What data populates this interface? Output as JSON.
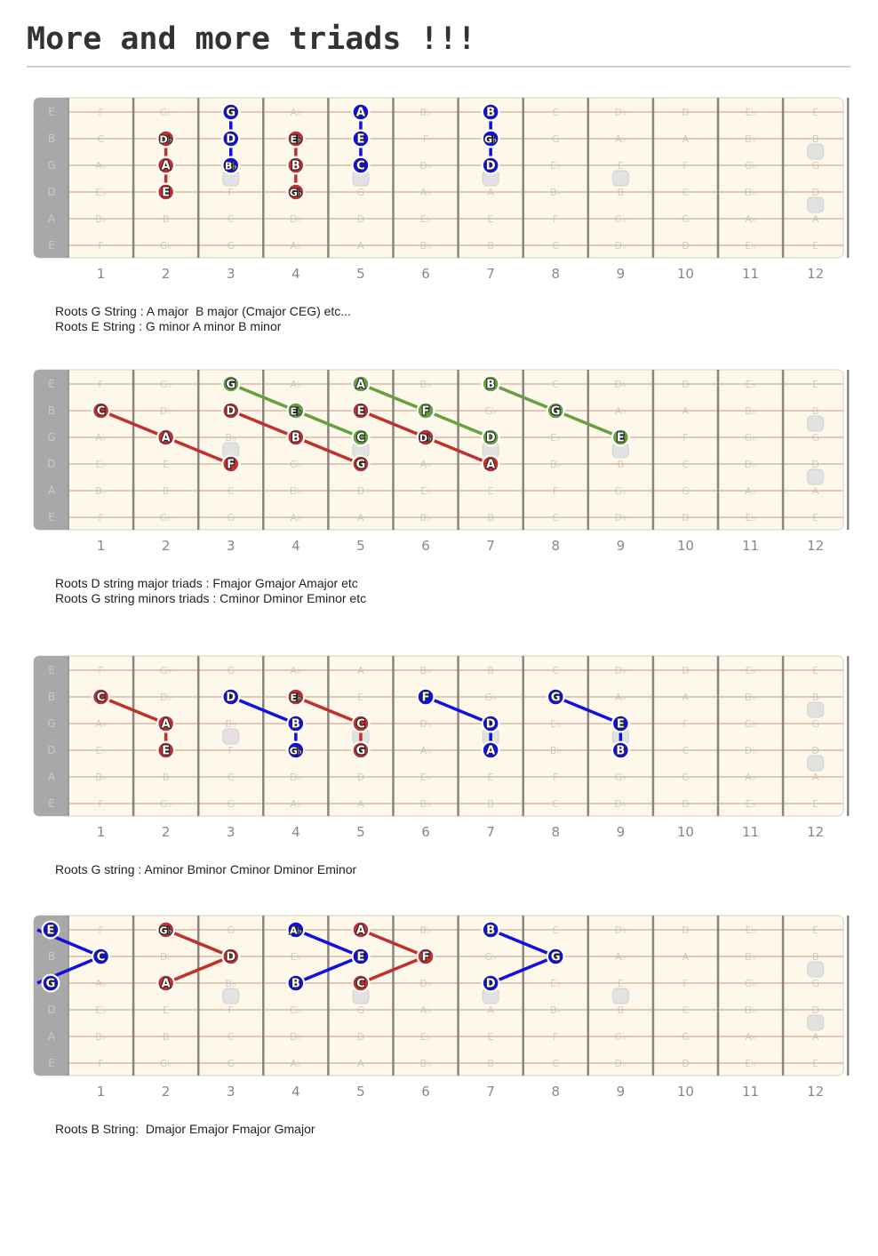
{
  "title": "More and more triads !!!",
  "fret_numbers": [
    "1",
    "2",
    "3",
    "4",
    "5",
    "6",
    "7",
    "8",
    "9",
    "10",
    "11",
    "12"
  ],
  "string_names": [
    "E",
    "B",
    "G",
    "D",
    "A",
    "E"
  ],
  "fretboard_notes": [
    [
      "F",
      "G♭",
      "G",
      "A♭",
      "A",
      "B♭",
      "B",
      "C",
      "D♭",
      "D",
      "E♭",
      "E"
    ],
    [
      "C",
      "D♭",
      "D",
      "E♭",
      "E",
      "F",
      "G♭",
      "G",
      "A♭",
      "A",
      "B♭",
      "B"
    ],
    [
      "A♭",
      "A",
      "B♭",
      "B",
      "C",
      "D♭",
      "D",
      "E♭",
      "E",
      "F",
      "G♭",
      "G"
    ],
    [
      "E♭",
      "E",
      "F",
      "G♭",
      "G",
      "A♭",
      "A",
      "B♭",
      "B",
      "C",
      "D♭",
      "D"
    ],
    [
      "B♭",
      "B",
      "C",
      "D♭",
      "D",
      "E♭",
      "E",
      "F",
      "G♭",
      "G",
      "A♭",
      "A"
    ],
    [
      "F",
      "G♭",
      "G",
      "A♭",
      "A",
      "B♭",
      "B",
      "C",
      "D♭",
      "D",
      "E♭",
      "E"
    ]
  ],
  "colors": {
    "red": "#c0302c",
    "blue": "#1010e0",
    "green": "#66a040",
    "board_bg": "#fdf8ea",
    "nut": "#a8a8a8",
    "string": "#d7ab92",
    "fret": "#8a8480",
    "ghost_text": "#cccccc",
    "inlay": "#e2e2e2"
  },
  "inlays": [
    {
      "fret": 3,
      "strings": [
        2.5
      ]
    },
    {
      "fret": 5,
      "strings": [
        2.5
      ]
    },
    {
      "fret": 7,
      "strings": [
        2.5
      ]
    },
    {
      "fret": 9,
      "strings": [
        2.5
      ]
    },
    {
      "fret": 12,
      "strings": [
        1.5,
        3.5
      ]
    }
  ],
  "diagrams": [
    {
      "captions": [
        "Roots G String : A major  B major (Cmajor CEG) etc...",
        "Roots E String : G minor A minor B minor"
      ],
      "notes": [
        {
          "fret": 2,
          "string": 1,
          "label": "D♭",
          "color": "red"
        },
        {
          "fret": 2,
          "string": 2,
          "label": "A",
          "color": "red"
        },
        {
          "fret": 2,
          "string": 3,
          "label": "E",
          "color": "red"
        },
        {
          "fret": 3,
          "string": 0,
          "label": "G",
          "color": "blue"
        },
        {
          "fret": 3,
          "string": 1,
          "label": "D",
          "color": "blue"
        },
        {
          "fret": 3,
          "string": 2,
          "label": "B♭",
          "color": "blue"
        },
        {
          "fret": 4,
          "string": 1,
          "label": "E♭",
          "color": "red"
        },
        {
          "fret": 4,
          "string": 2,
          "label": "B",
          "color": "red"
        },
        {
          "fret": 4,
          "string": 3,
          "label": "G♭",
          "color": "red"
        },
        {
          "fret": 5,
          "string": 0,
          "label": "A",
          "color": "blue"
        },
        {
          "fret": 5,
          "string": 1,
          "label": "E",
          "color": "blue"
        },
        {
          "fret": 5,
          "string": 2,
          "label": "C",
          "color": "blue"
        },
        {
          "fret": 7,
          "string": 0,
          "label": "B",
          "color": "blue"
        },
        {
          "fret": 7,
          "string": 1,
          "label": "G♭",
          "color": "blue"
        },
        {
          "fret": 7,
          "string": 2,
          "label": "D",
          "color": "blue"
        }
      ],
      "lines": [
        {
          "color": "red",
          "points": [
            [
              2,
              1
            ],
            [
              2,
              2
            ],
            [
              2,
              3
            ]
          ]
        },
        {
          "color": "blue",
          "points": [
            [
              3,
              0
            ],
            [
              3,
              1
            ],
            [
              3,
              2
            ]
          ]
        },
        {
          "color": "red",
          "points": [
            [
              4,
              1
            ],
            [
              4,
              2
            ],
            [
              4,
              3
            ]
          ]
        },
        {
          "color": "blue",
          "points": [
            [
              5,
              0
            ],
            [
              5,
              1
            ],
            [
              5,
              2
            ]
          ]
        },
        {
          "color": "blue",
          "points": [
            [
              7,
              0
            ],
            [
              7,
              1
            ],
            [
              7,
              2
            ]
          ]
        }
      ]
    },
    {
      "captions": [
        "Roots D string major triads : Fmajor Gmajor Amajor etc",
        "Roots G string minors triads : Cminor Dminor Eminor etc"
      ],
      "notes": [
        {
          "fret": 1,
          "string": 1,
          "label": "C",
          "color": "red"
        },
        {
          "fret": 2,
          "string": 2,
          "label": "A",
          "color": "red"
        },
        {
          "fret": 3,
          "string": 3,
          "label": "F",
          "color": "red"
        },
        {
          "fret": 3,
          "string": 1,
          "label": "D",
          "color": "red"
        },
        {
          "fret": 4,
          "string": 2,
          "label": "B",
          "color": "red"
        },
        {
          "fret": 5,
          "string": 3,
          "label": "G",
          "color": "red"
        },
        {
          "fret": 5,
          "string": 1,
          "label": "E",
          "color": "red"
        },
        {
          "fret": 6,
          "string": 2,
          "label": "D♭",
          "color": "red"
        },
        {
          "fret": 7,
          "string": 3,
          "label": "A",
          "color": "red"
        },
        {
          "fret": 3,
          "string": 0,
          "label": "G",
          "color": "green"
        },
        {
          "fret": 4,
          "string": 1,
          "label": "E♭",
          "color": "green"
        },
        {
          "fret": 5,
          "string": 2,
          "label": "C",
          "color": "green"
        },
        {
          "fret": 5,
          "string": 0,
          "label": "A",
          "color": "green"
        },
        {
          "fret": 6,
          "string": 1,
          "label": "F",
          "color": "green"
        },
        {
          "fret": 7,
          "string": 2,
          "label": "D",
          "color": "green"
        },
        {
          "fret": 7,
          "string": 0,
          "label": "B",
          "color": "green"
        },
        {
          "fret": 8,
          "string": 1,
          "label": "G",
          "color": "green"
        },
        {
          "fret": 9,
          "string": 2,
          "label": "E",
          "color": "green"
        }
      ],
      "lines": [
        {
          "color": "red",
          "points": [
            [
              1,
              1
            ],
            [
              2,
              2
            ],
            [
              3,
              3
            ]
          ]
        },
        {
          "color": "red",
          "points": [
            [
              3,
              1
            ],
            [
              4,
              2
            ],
            [
              5,
              3
            ]
          ]
        },
        {
          "color": "red",
          "points": [
            [
              5,
              1
            ],
            [
              6,
              2
            ],
            [
              7,
              3
            ]
          ]
        },
        {
          "color": "green",
          "points": [
            [
              3,
              0
            ],
            [
              4,
              1
            ],
            [
              5,
              2
            ]
          ]
        },
        {
          "color": "green",
          "points": [
            [
              5,
              0
            ],
            [
              6,
              1
            ],
            [
              7,
              2
            ]
          ]
        },
        {
          "color": "green",
          "points": [
            [
              7,
              0
            ],
            [
              8,
              1
            ],
            [
              9,
              2
            ]
          ]
        }
      ]
    },
    {
      "captions": [
        "Roots G string : Aminor Bminor Cminor Dminor Eminor"
      ],
      "notes": [
        {
          "fret": 1,
          "string": 1,
          "label": "C",
          "color": "red"
        },
        {
          "fret": 2,
          "string": 2,
          "label": "A",
          "color": "red"
        },
        {
          "fret": 2,
          "string": 3,
          "label": "E",
          "color": "red"
        },
        {
          "fret": 3,
          "string": 1,
          "label": "D",
          "color": "blue"
        },
        {
          "fret": 4,
          "string": 2,
          "label": "B",
          "color": "blue"
        },
        {
          "fret": 4,
          "string": 3,
          "label": "G♭",
          "color": "blue"
        },
        {
          "fret": 4,
          "string": 1,
          "label": "E♭",
          "color": "red"
        },
        {
          "fret": 5,
          "string": 2,
          "label": "C",
          "color": "red"
        },
        {
          "fret": 5,
          "string": 3,
          "label": "G",
          "color": "red"
        },
        {
          "fret": 6,
          "string": 1,
          "label": "F",
          "color": "blue"
        },
        {
          "fret": 7,
          "string": 2,
          "label": "D",
          "color": "blue"
        },
        {
          "fret": 7,
          "string": 3,
          "label": "A",
          "color": "blue"
        },
        {
          "fret": 8,
          "string": 1,
          "label": "G",
          "color": "blue"
        },
        {
          "fret": 9,
          "string": 2,
          "label": "E",
          "color": "blue"
        },
        {
          "fret": 9,
          "string": 3,
          "label": "B",
          "color": "blue"
        }
      ],
      "lines": [
        {
          "color": "red",
          "points": [
            [
              1,
              1
            ],
            [
              2,
              2
            ],
            [
              2,
              3
            ]
          ]
        },
        {
          "color": "blue",
          "points": [
            [
              3,
              1
            ],
            [
              4,
              2
            ],
            [
              4,
              3
            ]
          ]
        },
        {
          "color": "red",
          "points": [
            [
              4,
              1
            ],
            [
              5,
              2
            ],
            [
              5,
              3
            ]
          ]
        },
        {
          "color": "blue",
          "points": [
            [
              6,
              1
            ],
            [
              7,
              2
            ],
            [
              7,
              3
            ]
          ]
        },
        {
          "color": "blue",
          "points": [
            [
              8,
              1
            ],
            [
              9,
              2
            ],
            [
              9,
              3
            ]
          ]
        }
      ]
    },
    {
      "captions": [
        "Roots B String:  Dmajor Emajor Fmajor Gmajor"
      ],
      "notes": [
        {
          "fret": 0,
          "string": 0,
          "label": "E",
          "color": "blue"
        },
        {
          "fret": 1,
          "string": 1,
          "label": "C",
          "color": "blue"
        },
        {
          "fret": 0,
          "string": 2,
          "label": "G",
          "color": "blue"
        },
        {
          "fret": 2,
          "string": 0,
          "label": "G♭",
          "color": "red"
        },
        {
          "fret": 3,
          "string": 1,
          "label": "D",
          "color": "red"
        },
        {
          "fret": 2,
          "string": 2,
          "label": "A",
          "color": "red"
        },
        {
          "fret": 4,
          "string": 0,
          "label": "A♭",
          "color": "blue"
        },
        {
          "fret": 5,
          "string": 1,
          "label": "E",
          "color": "blue"
        },
        {
          "fret": 4,
          "string": 2,
          "label": "B",
          "color": "blue"
        },
        {
          "fret": 5,
          "string": 0,
          "label": "A",
          "color": "red"
        },
        {
          "fret": 6,
          "string": 1,
          "label": "F",
          "color": "red"
        },
        {
          "fret": 5,
          "string": 2,
          "label": "C",
          "color": "red"
        },
        {
          "fret": 7,
          "string": 0,
          "label": "B",
          "color": "blue"
        },
        {
          "fret": 8,
          "string": 1,
          "label": "G",
          "color": "blue"
        },
        {
          "fret": 7,
          "string": 2,
          "label": "D",
          "color": "blue"
        }
      ],
      "lines": [
        {
          "color": "blue",
          "points": [
            [
              0,
              0
            ],
            [
              1,
              1
            ],
            [
              0,
              2
            ]
          ]
        },
        {
          "color": "red",
          "points": [
            [
              2,
              0
            ],
            [
              3,
              1
            ],
            [
              2,
              2
            ]
          ]
        },
        {
          "color": "blue",
          "points": [
            [
              4,
              0
            ],
            [
              5,
              1
            ],
            [
              4,
              2
            ]
          ]
        },
        {
          "color": "red",
          "points": [
            [
              5,
              0
            ],
            [
              6,
              1
            ],
            [
              5,
              2
            ]
          ]
        },
        {
          "color": "blue",
          "points": [
            [
              7,
              0
            ],
            [
              8,
              1
            ],
            [
              7,
              2
            ]
          ]
        }
      ]
    }
  ]
}
